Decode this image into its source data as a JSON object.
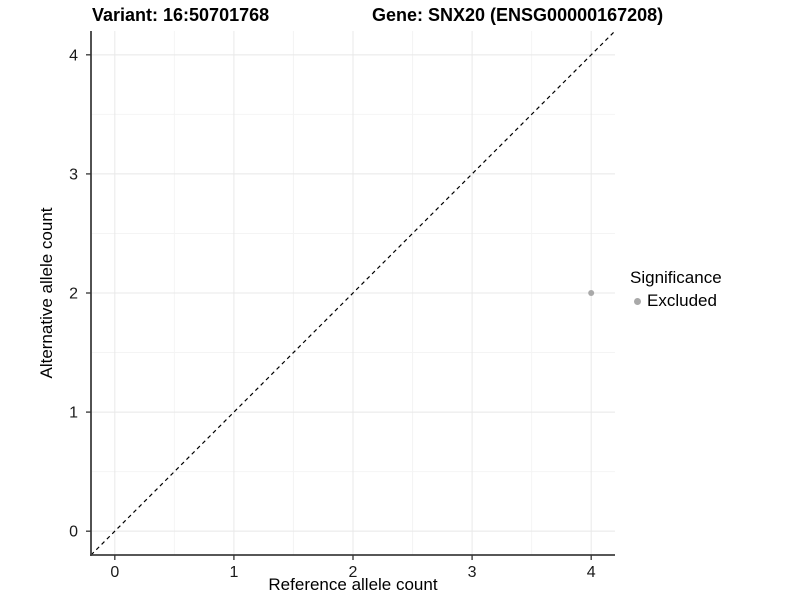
{
  "chart_data": {
    "type": "scatter",
    "title_left": "Variant: 16:50701768",
    "title_right": "Gene: SNX20 (ENSG00000167208)",
    "xlabel": "Reference allele count",
    "ylabel": "Alternative allele count",
    "xlim": [
      -0.2,
      4.2
    ],
    "ylim": [
      -0.2,
      4.2
    ],
    "xticks": [
      "0",
      "1",
      "2",
      "3",
      "4"
    ],
    "yticks": [
      "0",
      "1",
      "2",
      "3",
      "4"
    ],
    "xtick_values": [
      0,
      1,
      2,
      3,
      4
    ],
    "ytick_values": [
      0,
      1,
      2,
      3,
      4
    ],
    "minor_tick_values": [
      0.5,
      1.5,
      2.5,
      3.5
    ],
    "grid": "major+minor",
    "points": [
      {
        "x": 4,
        "y": 2,
        "significance": "Excluded"
      }
    ],
    "identity_line": {
      "style": "dashed",
      "x1": -0.2,
      "y1": -0.2,
      "x2": 4.2,
      "y2": 4.2
    },
    "legend": {
      "title": "Significance",
      "position": "right",
      "items": [
        {
          "label": "Excluded",
          "color": "#a9a9a9",
          "marker": "circle"
        }
      ]
    },
    "colors": {
      "background": "#ffffff",
      "point": "#a9a9a9",
      "grid_major": "#e8e8e8",
      "grid_minor": "#f4f4f4",
      "axis_line": "#3f3f3f",
      "tick_mark": "#333333",
      "tick_label": "#1a1a1a",
      "dashed_line": "#000000"
    }
  }
}
